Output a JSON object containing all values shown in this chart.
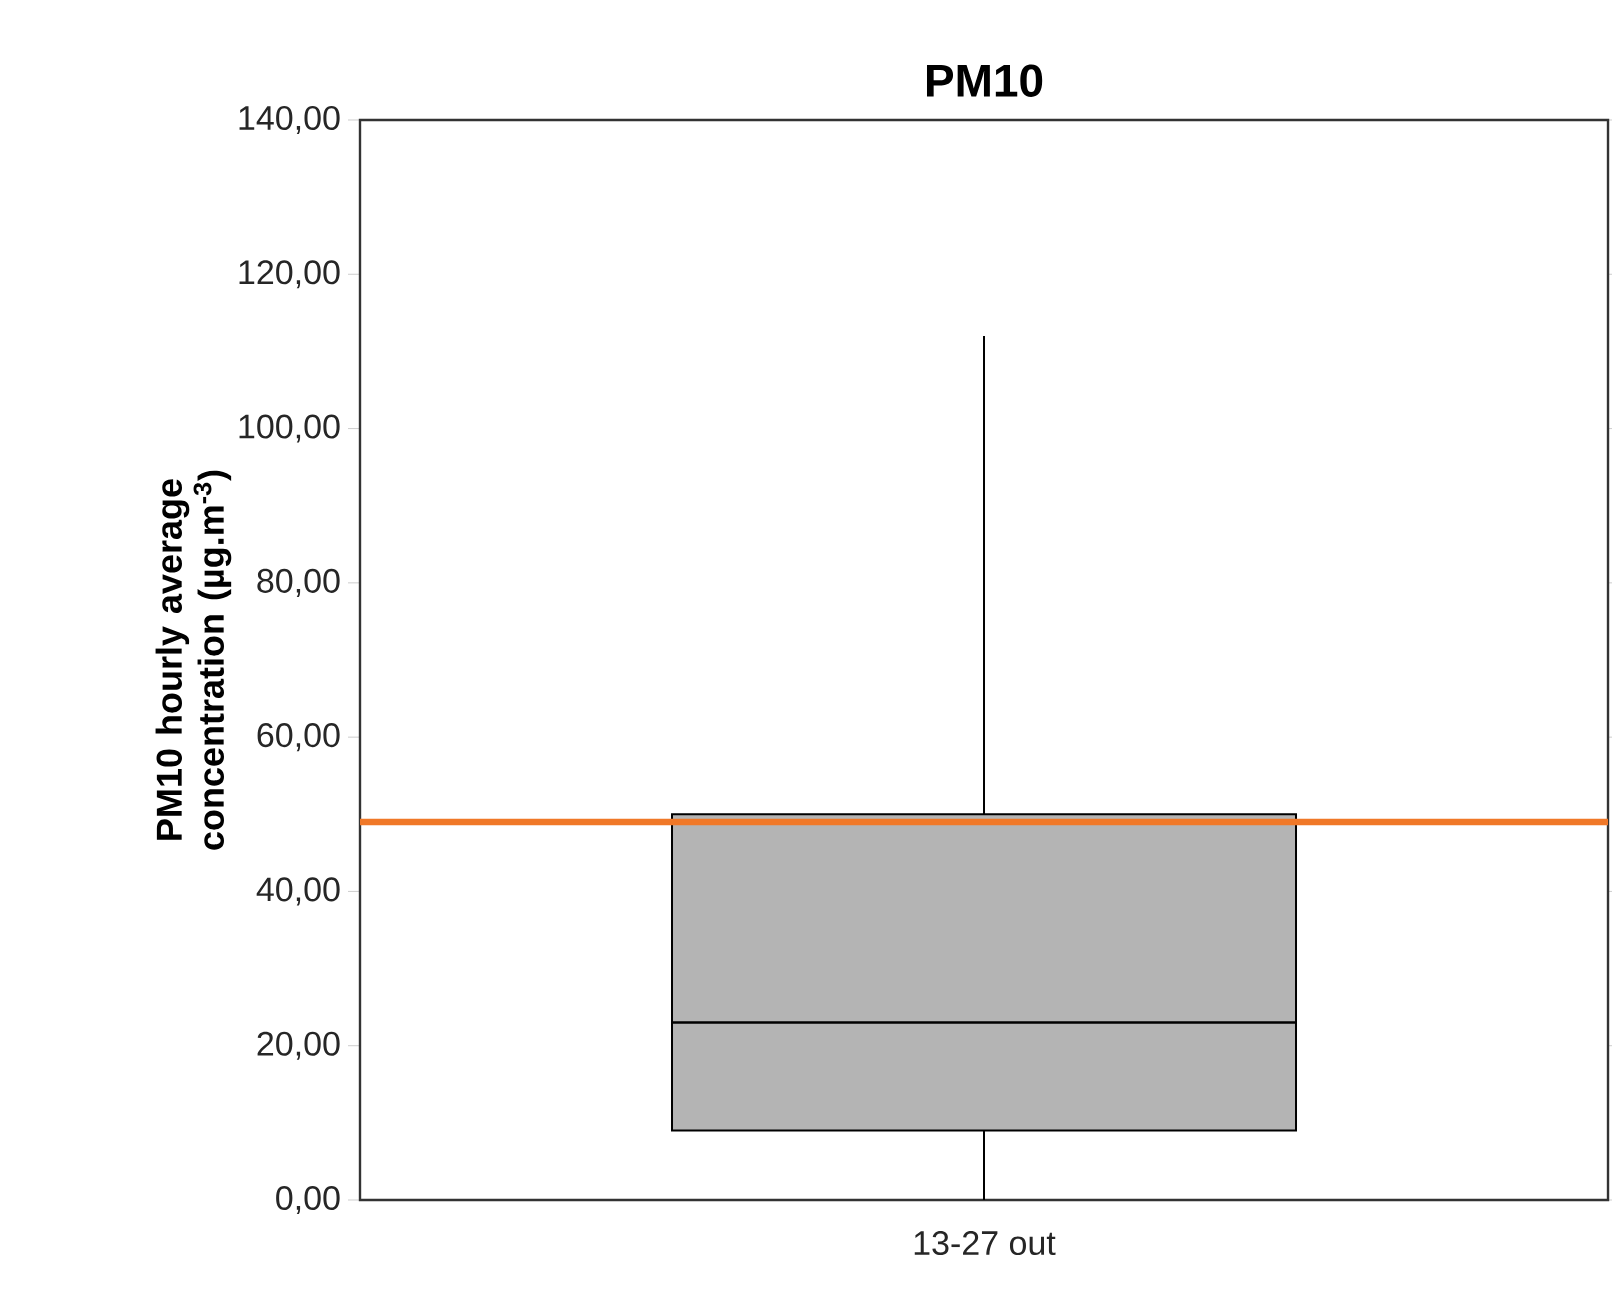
{
  "chart_data": {
    "type": "box",
    "title": "PM10",
    "ylabel": "PM10 hourly average concentration (µg.m$^{-3}$)",
    "categories": [
      "13-27 out"
    ],
    "boxes": [
      {
        "low": 0,
        "q1": 9,
        "median": 23,
        "q3": 50,
        "high": 112
      }
    ],
    "color": "#b4b4b4",
    "ylim": [
      0,
      140
    ],
    "yticks": [
      {
        "value": 0,
        "label": "0,00"
      },
      {
        "value": 20,
        "label": "20,00"
      },
      {
        "value": 40,
        "label": "40,00"
      },
      {
        "value": 60,
        "label": "60,00"
      },
      {
        "value": 80,
        "label": "80,00"
      },
      {
        "value": 100,
        "label": "100,00"
      },
      {
        "value": 120,
        "label": "120,00"
      },
      {
        "value": 140,
        "label": "140,00"
      }
    ],
    "ref_lines": [
      {
        "axis": "y",
        "value": 49,
        "color": "#f07828"
      }
    ]
  }
}
